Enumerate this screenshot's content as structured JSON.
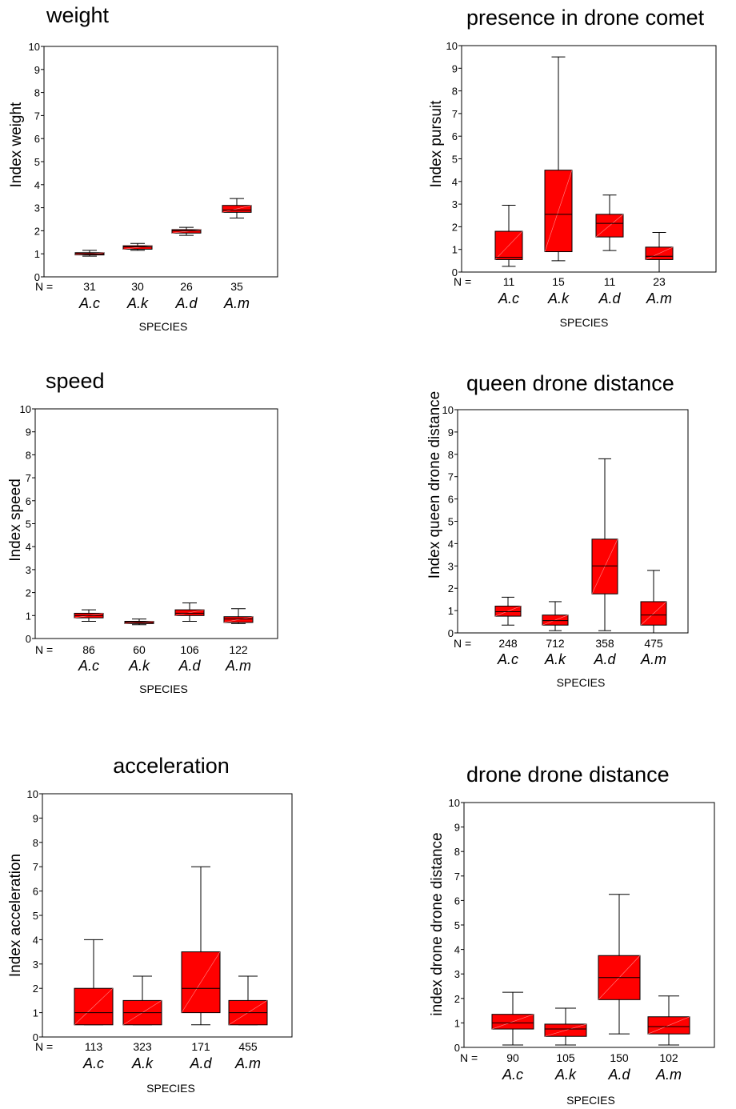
{
  "colors": {
    "box_fill": "#ff0000",
    "line": "#000000",
    "background": "#ffffff"
  },
  "chart_data": [
    {
      "type": "box",
      "title": "weight",
      "ylabel": "Index weight",
      "xlabel": "SPECIES",
      "ylim": [
        0,
        10
      ],
      "yticks": [
        0,
        1,
        2,
        3,
        4,
        5,
        6,
        7,
        8,
        9,
        10
      ],
      "n_prefix": "N =",
      "categories": [
        "A.c",
        "A.k",
        "A.d",
        "A.m"
      ],
      "n": [
        "31",
        "30",
        "26",
        "35"
      ],
      "boxes": [
        {
          "whisker_low": 0.9,
          "q1": 0.95,
          "median": 1.0,
          "q3": 1.05,
          "whisker_high": 1.15
        },
        {
          "whisker_low": 1.15,
          "q1": 1.2,
          "median": 1.3,
          "q3": 1.35,
          "whisker_high": 1.45
        },
        {
          "whisker_low": 1.8,
          "q1": 1.9,
          "median": 2.0,
          "q3": 2.05,
          "whisker_high": 2.15
        },
        {
          "whisker_low": 2.55,
          "q1": 2.8,
          "median": 2.9,
          "q3": 3.1,
          "whisker_high": 3.4
        }
      ]
    },
    {
      "type": "box",
      "title": "presence in drone comet",
      "ylabel": "Index pursuit",
      "xlabel": "SPECIES",
      "ylim": [
        0,
        10
      ],
      "yticks": [
        0,
        1,
        2,
        3,
        4,
        5,
        6,
        7,
        8,
        9,
        10
      ],
      "n_prefix": "N =",
      "categories": [
        "A.c",
        "A.k",
        "A.d",
        "A.m"
      ],
      "n": [
        "11",
        "15",
        "11",
        "23"
      ],
      "boxes": [
        {
          "whisker_low": 0.25,
          "q1": 0.55,
          "median": 0.65,
          "q3": 1.8,
          "whisker_high": 2.95
        },
        {
          "whisker_low": 0.5,
          "q1": 0.9,
          "median": 2.55,
          "q3": 4.5,
          "whisker_high": 9.5
        },
        {
          "whisker_low": 0.95,
          "q1": 1.55,
          "median": 2.15,
          "q3": 2.55,
          "whisker_high": 3.4
        },
        {
          "whisker_low": 0.0,
          "q1": 0.55,
          "median": 0.7,
          "q3": 1.1,
          "whisker_high": 1.75
        }
      ]
    },
    {
      "type": "box",
      "title": "speed",
      "ylabel": "Index speed",
      "xlabel": "SPECIES",
      "ylim": [
        0,
        10
      ],
      "yticks": [
        0,
        1,
        2,
        3,
        4,
        5,
        6,
        7,
        8,
        9,
        10
      ],
      "n_prefix": "N =",
      "categories": [
        "A.c",
        "A.k",
        "A.d",
        "A.m"
      ],
      "n": [
        "86",
        "60",
        "106",
        "122"
      ],
      "boxes": [
        {
          "whisker_low": 0.75,
          "q1": 0.9,
          "median": 1.0,
          "q3": 1.1,
          "whisker_high": 1.25
        },
        {
          "whisker_low": 0.6,
          "q1": 0.65,
          "median": 0.7,
          "q3": 0.75,
          "whisker_high": 0.85
        },
        {
          "whisker_low": 0.75,
          "q1": 1.0,
          "median": 1.1,
          "q3": 1.25,
          "whisker_high": 1.55
        },
        {
          "whisker_low": 0.65,
          "q1": 0.7,
          "median": 0.85,
          "q3": 0.95,
          "whisker_high": 1.3
        }
      ]
    },
    {
      "type": "box",
      "title": "queen drone distance",
      "ylabel": "Index queen drone distance",
      "xlabel": "SPECIES",
      "ylim": [
        0,
        10
      ],
      "yticks": [
        0,
        1,
        2,
        3,
        4,
        5,
        6,
        7,
        8,
        9,
        10
      ],
      "n_prefix": "N =",
      "categories": [
        "A.c",
        "A.k",
        "A.d",
        "A.m"
      ],
      "n": [
        "248",
        "712",
        "358",
        "475"
      ],
      "boxes": [
        {
          "whisker_low": 0.35,
          "q1": 0.75,
          "median": 0.95,
          "q3": 1.2,
          "whisker_high": 1.6
        },
        {
          "whisker_low": 0.1,
          "q1": 0.35,
          "median": 0.55,
          "q3": 0.8,
          "whisker_high": 1.4
        },
        {
          "whisker_low": 0.1,
          "q1": 1.75,
          "median": 3.0,
          "q3": 4.2,
          "whisker_high": 7.8
        },
        {
          "whisker_low": 0.0,
          "q1": 0.35,
          "median": 0.8,
          "q3": 1.4,
          "whisker_high": 2.8
        }
      ]
    },
    {
      "type": "box",
      "title": "acceleration",
      "ylabel": "Index acceleration",
      "xlabel": "SPECIES",
      "ylim": [
        0,
        10
      ],
      "yticks": [
        0,
        1,
        2,
        3,
        4,
        5,
        6,
        7,
        8,
        9,
        10
      ],
      "n_prefix": "N =",
      "categories": [
        "A.c",
        "A.k",
        "A.d",
        "A.m"
      ],
      "n": [
        "113",
        "323",
        "171",
        "455"
      ],
      "boxes": [
        {
          "whisker_low": 0.5,
          "q1": 0.5,
          "median": 1.0,
          "q3": 2.0,
          "whisker_high": 4.0
        },
        {
          "whisker_low": 0.5,
          "q1": 0.5,
          "median": 1.0,
          "q3": 1.5,
          "whisker_high": 2.5
        },
        {
          "whisker_low": 0.5,
          "q1": 1.0,
          "median": 2.0,
          "q3": 3.5,
          "whisker_high": 7.0
        },
        {
          "whisker_low": 0.5,
          "q1": 0.5,
          "median": 1.0,
          "q3": 1.5,
          "whisker_high": 2.5
        }
      ]
    },
    {
      "type": "box",
      "title": "drone drone distance",
      "ylabel": "index  drone drone distance",
      "xlabel": "SPECIES",
      "ylim": [
        0,
        10
      ],
      "yticks": [
        0,
        1,
        2,
        3,
        4,
        5,
        6,
        7,
        8,
        9,
        10
      ],
      "n_prefix": "N =",
      "categories": [
        "A.c",
        "A.k",
        "A.d",
        "A.m"
      ],
      "n": [
        "90",
        "105",
        "150",
        "102"
      ],
      "boxes": [
        {
          "whisker_low": 0.1,
          "q1": 0.75,
          "median": 1.0,
          "q3": 1.35,
          "whisker_high": 2.25
        },
        {
          "whisker_low": 0.1,
          "q1": 0.45,
          "median": 0.75,
          "q3": 0.95,
          "whisker_high": 1.6
        },
        {
          "whisker_low": 0.55,
          "q1": 1.95,
          "median": 2.85,
          "q3": 3.75,
          "whisker_high": 6.25
        },
        {
          "whisker_low": 0.1,
          "q1": 0.55,
          "median": 0.85,
          "q3": 1.25,
          "whisker_high": 2.1
        }
      ]
    }
  ]
}
